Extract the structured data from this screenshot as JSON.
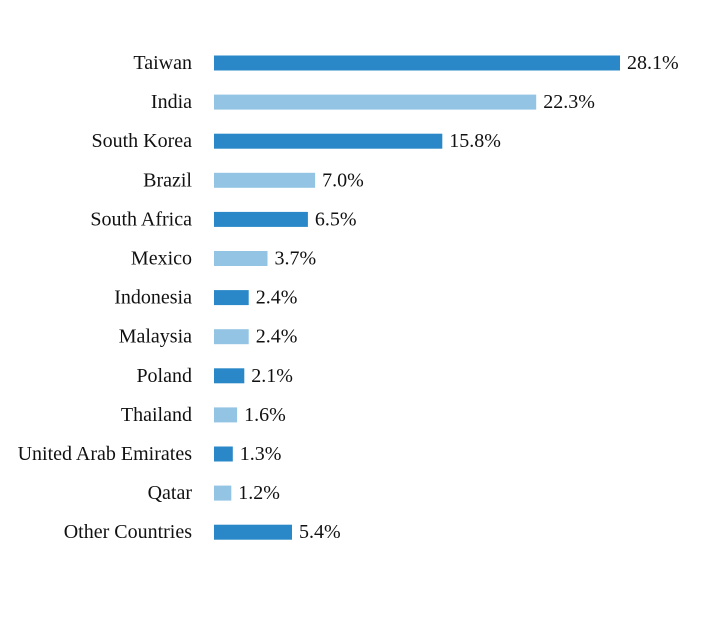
{
  "chart_data": {
    "type": "bar",
    "orientation": "horizontal",
    "categories": [
      "Taiwan",
      "India",
      "South Korea",
      "Brazil",
      "South Africa",
      "Mexico",
      "Indonesia",
      "Malaysia",
      "Poland",
      "Thailand",
      "United Arab Emirates",
      "Qatar",
      "Other Countries"
    ],
    "values": [
      28.1,
      22.3,
      15.8,
      7.0,
      6.5,
      3.7,
      2.4,
      2.4,
      2.1,
      1.6,
      1.3,
      1.2,
      5.4
    ],
    "data_labels": [
      "28.1%",
      "22.3%",
      "15.8%",
      "7.0%",
      "6.5%",
      "3.7%",
      "2.4%",
      "2.4%",
      "2.1%",
      "1.6%",
      "1.3%",
      "1.2%",
      "5.4%"
    ],
    "bar_colors": [
      "#2a88c8",
      "#93c4e3"
    ],
    "title": "",
    "xlabel": "",
    "ylabel": "",
    "grid": false,
    "legend": "none"
  }
}
